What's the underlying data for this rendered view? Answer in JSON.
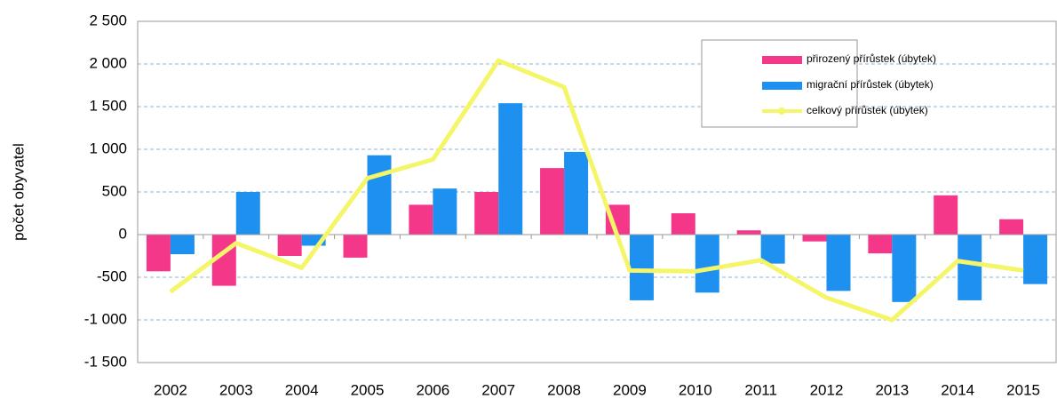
{
  "chart_data": {
    "type": "bar",
    "ylabel": "počet obyvatel",
    "categories": [
      "2002",
      "2003",
      "2004",
      "2005",
      "2006",
      "2007",
      "2008",
      "2009",
      "2010",
      "2011",
      "2012",
      "2013",
      "2014",
      "2015"
    ],
    "series": [
      {
        "name": "přirozený přírůstek  (úbytek)",
        "color": "#f5378a",
        "values": [
          -430,
          -600,
          -250,
          -270,
          350,
          500,
          780,
          350,
          250,
          50,
          -80,
          -220,
          460,
          180
        ]
      },
      {
        "name": "migrační přírůstek  (úbytek)",
        "color": "#1e90f0",
        "values": [
          -230,
          500,
          -130,
          930,
          540,
          1540,
          970,
          -770,
          -680,
          -340,
          -660,
          -790,
          -770,
          -580
        ]
      },
      {
        "name": "celkový přírůstek  (úbytek)",
        "type": "line",
        "color": "#f5f56a",
        "values": [
          -670,
          -100,
          -390,
          660,
          880,
          2040,
          1730,
          -420,
          -430,
          -300,
          -740,
          -1000,
          -310,
          -420
        ]
      }
    ],
    "ylim": [
      -1500,
      2500
    ],
    "yticks": [
      {
        "value": -1500,
        "label": "-1 500"
      },
      {
        "value": -1000,
        "label": "-1 000"
      },
      -500,
      0,
      500,
      {
        "value": 1000,
        "label": "1 000"
      },
      {
        "value": 1500,
        "label": "1 500"
      },
      {
        "value": 2000,
        "label": "2 000"
      },
      {
        "value": 2500,
        "label": "2 500"
      }
    ],
    "grid": true,
    "legend": "upper right"
  }
}
